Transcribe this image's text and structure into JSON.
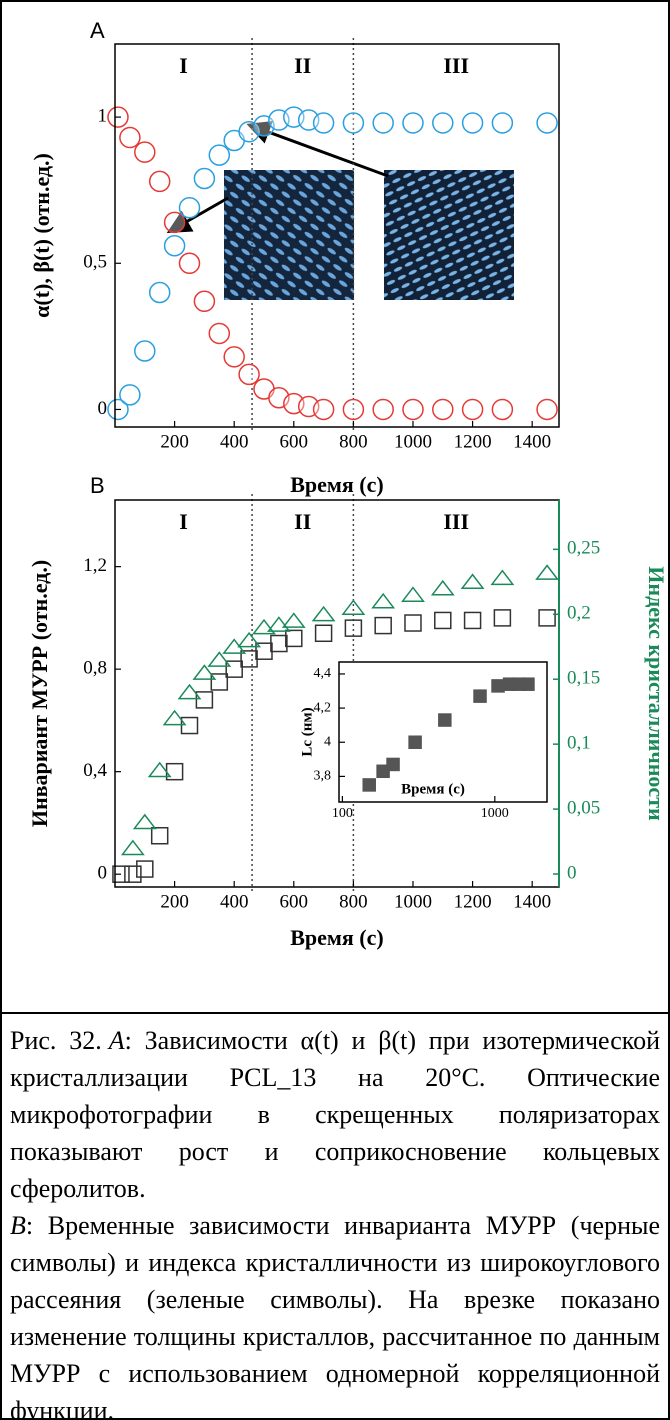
{
  "chart_data": [
    {
      "type": "scatter",
      "panel": "A",
      "xlabel": "Время (с)",
      "ylabel": "α(t), β(t) (отн.ед.)",
      "xlim": [
        0,
        1490
      ],
      "ylim": [
        -0.06,
        1.25
      ],
      "xticks": [
        200,
        400,
        600,
        800,
        1000,
        1200,
        1400
      ],
      "yticks": [
        0,
        {
          "value": 0.5,
          "label": "0,5"
        },
        1
      ],
      "regions": [
        "I",
        "II",
        "III"
      ],
      "vlines": [
        460,
        800
      ],
      "x": [
        10,
        50,
        100,
        150,
        200,
        250,
        300,
        350,
        400,
        450,
        500,
        550,
        600,
        650,
        700,
        800,
        900,
        1000,
        1100,
        1200,
        1300,
        1450
      ],
      "series": [
        {
          "color": "#e53935",
          "marker": "circle",
          "values": [
            1.0,
            0.93,
            0.88,
            0.78,
            0.64,
            0.5,
            0.37,
            0.26,
            0.18,
            0.12,
            0.07,
            0.04,
            0.02,
            0.01,
            0,
            0,
            0,
            0,
            0,
            0,
            0,
            0
          ]
        },
        {
          "color": "#2a9fe0",
          "marker": "circle",
          "values": [
            0.0,
            0.05,
            0.2,
            0.4,
            0.56,
            0.69,
            0.79,
            0.87,
            0.92,
            0.95,
            0.97,
            0.99,
            1.0,
            0.99,
            0.98,
            0.98,
            0.98,
            0.98,
            0.98,
            0.98,
            0.98,
            0.98
          ]
        }
      ]
    },
    {
      "type": "scatter",
      "panel": "B",
      "xlabel": "Время (с)",
      "ylabel": "Инвариант МУРР (отн.ед.)",
      "y2label": "Индекс кристалличности",
      "y2color": "#1a8a5a",
      "xlim": [
        0,
        1490
      ],
      "ylim": [
        -0.05,
        1.46
      ],
      "y2lim": [
        -0.01,
        0.288
      ],
      "xticks": [
        200,
        400,
        600,
        800,
        1000,
        1200,
        1400
      ],
      "yticks": [
        0,
        {
          "value": 0.4,
          "label": "0,4"
        },
        {
          "value": 0.8,
          "label": "0,8"
        },
        {
          "value": 1.2,
          "label": "1,2"
        }
      ],
      "y2ticks": [
        0,
        {
          "value": 0.05,
          "label": "0,05"
        },
        {
          "value": 0.1,
          "label": "0,1"
        },
        {
          "value": 0.15,
          "label": "0,15"
        },
        {
          "value": 0.2,
          "label": "0,2"
        },
        {
          "value": 0.25,
          "label": "0,25"
        }
      ],
      "regions": [
        "I",
        "II",
        "III"
      ],
      "vlines": [
        460,
        800
      ],
      "x": [
        20,
        60,
        100,
        150,
        200,
        250,
        300,
        350,
        400,
        450,
        500,
        550,
        600,
        700,
        800,
        900,
        1000,
        1100,
        1200,
        1300,
        1450
      ],
      "series": [
        {
          "color": "#333333",
          "marker": "square",
          "values": [
            0,
            0,
            0.02,
            0.15,
            0.4,
            0.58,
            0.68,
            0.75,
            0.8,
            0.84,
            0.87,
            0.9,
            0.92,
            0.94,
            0.96,
            0.97,
            0.98,
            0.99,
            0.99,
            1.0,
            1.0
          ]
        },
        {
          "color": "#1a8a5a",
          "marker": "triangle",
          "axis": "y2",
          "values": [
            null,
            0.02,
            0.04,
            0.08,
            0.12,
            0.14,
            0.155,
            0.165,
            0.175,
            0.18,
            0.19,
            0.192,
            0.195,
            0.2,
            0.205,
            0.21,
            0.215,
            0.22,
            0.225,
            0.228,
            0.232
          ]
        }
      ]
    },
    {
      "type": "scatter",
      "xlabel": "Время (с)",
      "ylabel": "Lc (нм)",
      "xlog": true,
      "xlim": [
        95,
        2200
      ],
      "ylim": [
        3.65,
        4.47
      ],
      "xticks": [
        100,
        1000
      ],
      "yticks": [
        {
          "value": 3.8,
          "label": "3,8"
        },
        4,
        {
          "value": 4.2,
          "label": "4,2"
        },
        {
          "value": 4.4,
          "label": "4,4"
        }
      ],
      "x": [
        150,
        185,
        215,
        300,
        470,
        800,
        1050,
        1250,
        1450,
        1650
      ],
      "series": [
        {
          "color": "#555555",
          "marker": "square-filled",
          "values": [
            3.75,
            3.83,
            3.87,
            4.0,
            4.13,
            4.27,
            4.33,
            4.34,
            4.34,
            4.34
          ]
        }
      ]
    }
  ],
  "caption": {
    "figure_number": "Рис. 32.",
    "part_a": {
      "label": "A",
      "text": ": Зависимости α(t) и β(t) при изотермической кристаллизации PCL_13 на 20°C. Оптические микрофотографии в скрещенных поляризаторах показывают рост и соприкосновение кольцевых сферолитов."
    },
    "part_b": {
      "label": "B",
      "text": ": Временные зависимости инварианта МУРР (черные символы) и индекса кристалличности из широкоуглового рассеяния (зеленые символы). На врезке показано изменение толщины кристаллов, рассчитанное по данным МУРР с использованием одномерной корреляционной функции."
    }
  }
}
